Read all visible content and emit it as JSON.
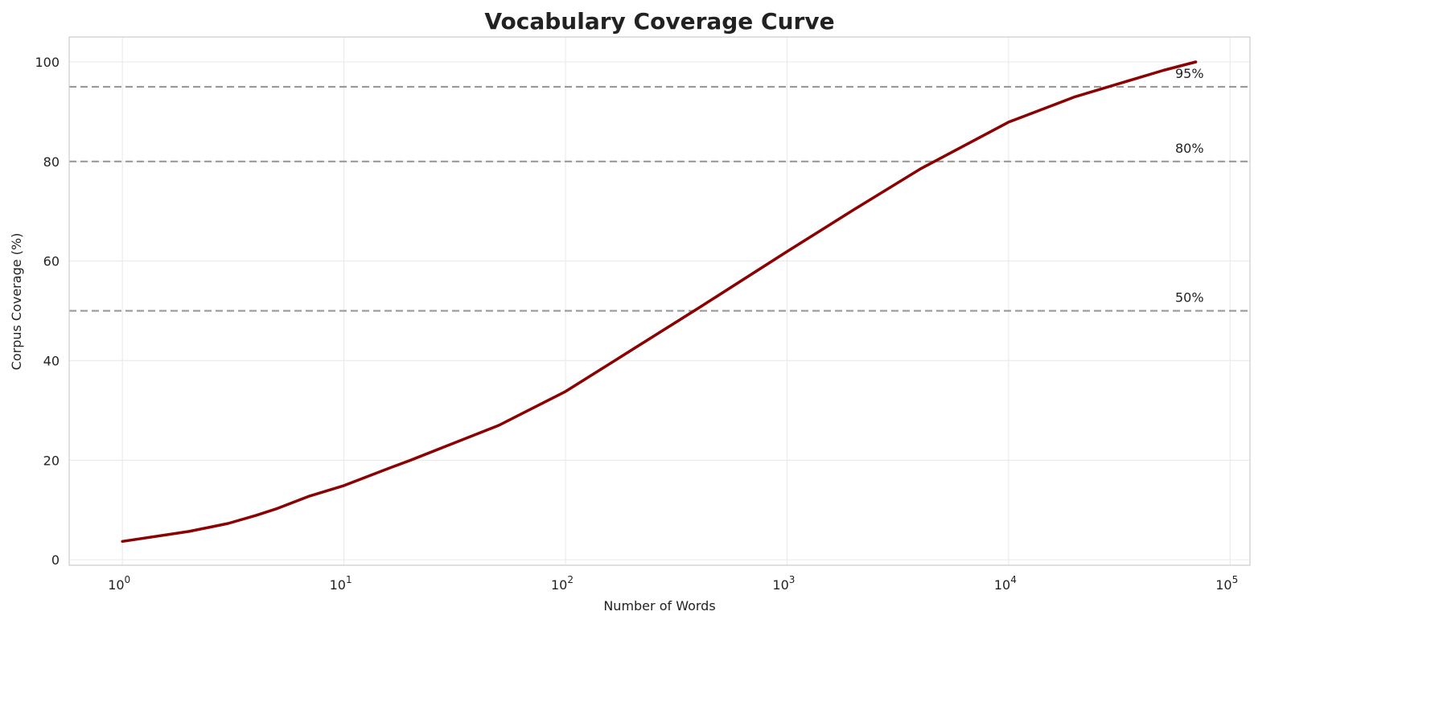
{
  "chart_data": {
    "type": "line",
    "title": "Vocabulary Coverage Curve",
    "xlabel": "Number of Words",
    "ylabel": "Corpus Coverage (%)",
    "xscale": "log",
    "xlim": [
      0.575,
      123000
    ],
    "ylim": [
      -1.1,
      105
    ],
    "grid": true,
    "x_ticks": [
      1,
      10,
      100,
      1000,
      10000,
      100000
    ],
    "x_tick_labels": [
      {
        "base": "10",
        "exp": "0"
      },
      {
        "base": "10",
        "exp": "1"
      },
      {
        "base": "10",
        "exp": "2"
      },
      {
        "base": "10",
        "exp": "3"
      },
      {
        "base": "10",
        "exp": "4"
      },
      {
        "base": "10",
        "exp": "5"
      }
    ],
    "y_ticks": [
      0,
      20,
      40,
      60,
      80,
      100
    ],
    "y_tick_labels": [
      "0",
      "20",
      "40",
      "60",
      "80",
      100
    ],
    "line_color": "#8b0000",
    "threshold_color": "#999999",
    "series": [
      {
        "x": [
          1,
          2,
          3,
          4,
          5,
          7,
          10,
          16,
          20,
          30,
          50,
          100,
          200,
          400,
          1000,
          2000,
          4000,
          10000,
          20000,
          50000,
          70000
        ],
        "y": [
          3.7,
          5.7,
          7.3,
          8.9,
          10.3,
          12.8,
          14.9,
          18.4,
          20.0,
          23.1,
          27.0,
          33.8,
          42.2,
          50.6,
          61.9,
          70.3,
          78.5,
          87.9,
          93.0,
          98.3,
          100.0
        ]
      }
    ],
    "thresholds": [
      {
        "value": 50,
        "label": "50%"
      },
      {
        "value": 80,
        "label": "80%"
      },
      {
        "value": 95,
        "label": "95%"
      }
    ]
  }
}
